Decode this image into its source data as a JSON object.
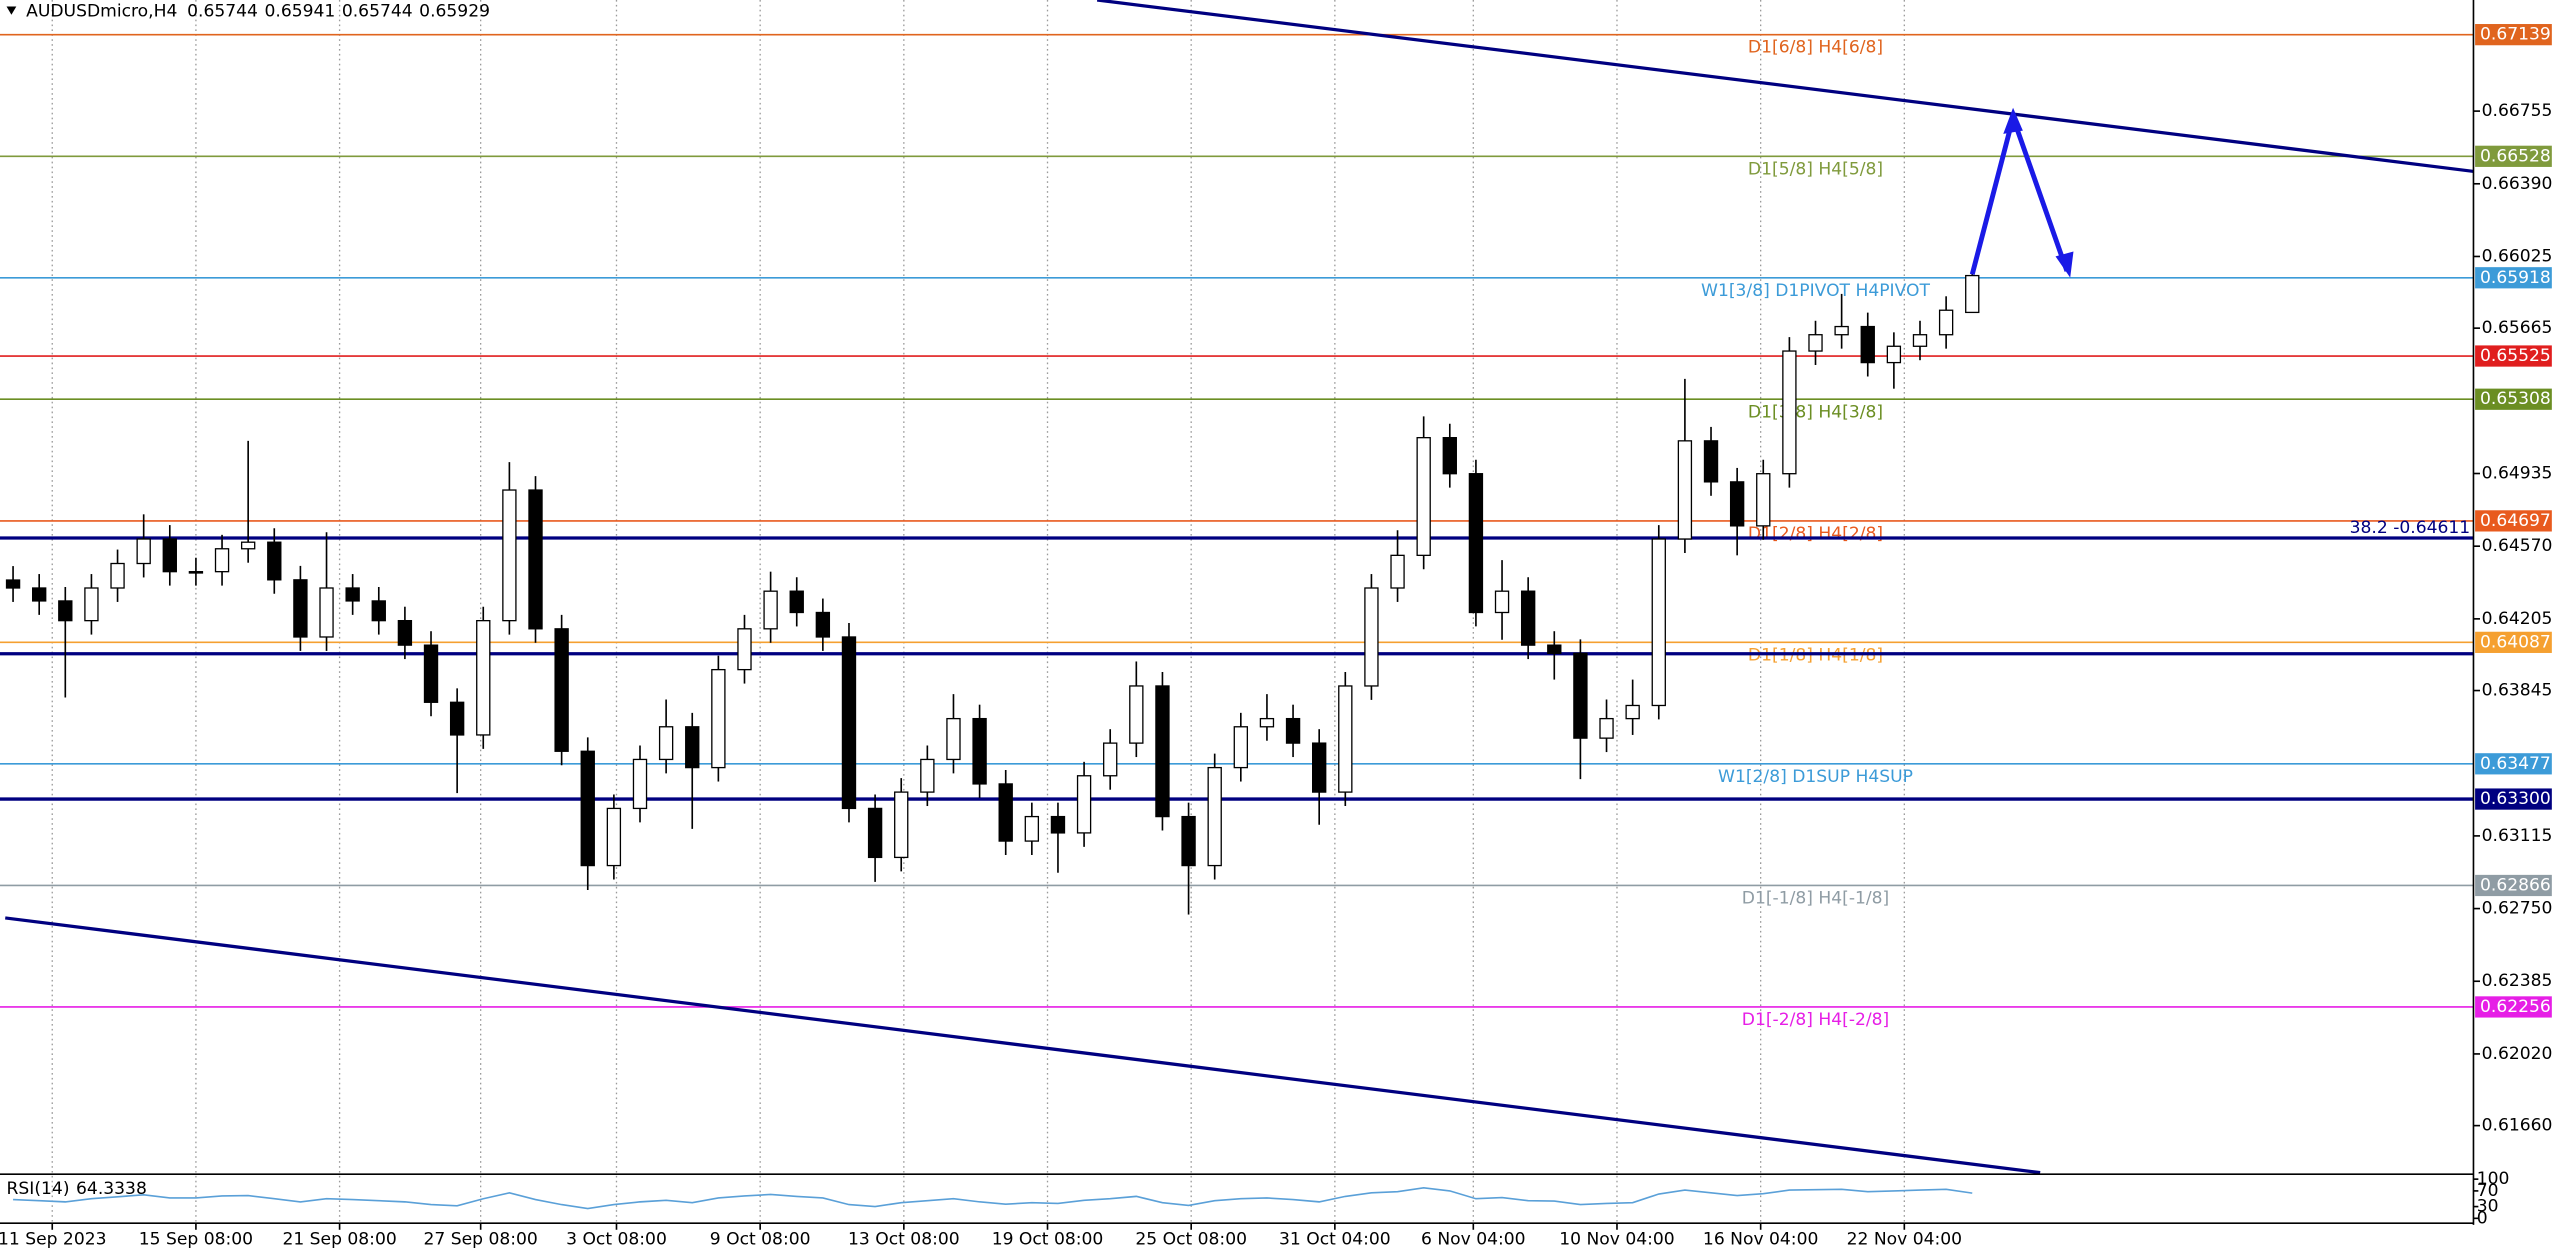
{
  "chart_data": {
    "type": "candlestick",
    "title": "AUDUSDmicro,H4",
    "last_bar": [
      0.65744,
      0.65941,
      0.65744,
      0.65929
    ],
    "up_color": "#ffffff",
    "down_color": "#000000",
    "open": [
      0.644,
      0.6436,
      0.64295,
      0.64196,
      0.6436,
      0.64483,
      0.64606,
      0.64442,
      0.64442,
      0.64557,
      0.6459,
      0.64401,
      0.64114,
      0.6436,
      0.64295,
      0.64196,
      0.64073,
      0.63786,
      0.63622,
      0.64196,
      0.64852,
      0.64155,
      0.6354,
      0.62966,
      0.63253,
      0.63499,
      0.63663,
      0.63458,
      0.6395,
      0.64155,
      0.64344,
      0.64237,
      0.64114,
      0.63253,
      0.63007,
      0.63335,
      0.63499,
      0.63704,
      0.63376,
      0.63089,
      0.63212,
      0.6313,
      0.63417,
      0.63581,
      0.63868,
      0.63212,
      0.62966,
      0.63458,
      0.63663,
      0.63704,
      0.63581,
      0.63335,
      0.63868,
      0.6436,
      0.64524,
      0.65115,
      0.64934,
      0.64237,
      0.64344,
      0.64073,
      0.64032,
      0.63606,
      0.63704,
      0.6377,
      0.64606,
      0.65099,
      0.64893,
      0.64672,
      0.64934,
      0.6555,
      0.65632,
      0.65673,
      0.65492,
      0.65574,
      0.65632,
      0.65744
    ],
    "high": [
      0.6447,
      0.6443,
      0.64365,
      0.6443,
      0.64553,
      0.6473,
      0.64676,
      0.64512,
      0.64627,
      0.65099,
      0.6466,
      0.64471,
      0.6464,
      0.6443,
      0.64365,
      0.64266,
      0.64143,
      0.63856,
      0.64266,
      0.64992,
      0.64922,
      0.64225,
      0.6361,
      0.63323,
      0.63569,
      0.638,
      0.63733,
      0.6402,
      0.64225,
      0.64442,
      0.64414,
      0.64307,
      0.64184,
      0.63323,
      0.63405,
      0.63569,
      0.63827,
      0.63774,
      0.63446,
      0.63282,
      0.63282,
      0.63487,
      0.63651,
      0.63991,
      0.63938,
      0.63282,
      0.63528,
      0.63733,
      0.63827,
      0.63774,
      0.63651,
      0.63938,
      0.6443,
      0.6465,
      0.65222,
      0.65185,
      0.65004,
      0.645,
      0.64414,
      0.64143,
      0.64102,
      0.638,
      0.639,
      0.64676,
      0.6541,
      0.65169,
      0.64963,
      0.65004,
      0.6562,
      0.65702,
      0.65837,
      0.65743,
      0.65644,
      0.65702,
      0.65825,
      0.65941
    ],
    "low": [
      0.6429,
      0.64225,
      0.6381,
      0.64126,
      0.6429,
      0.64413,
      0.64372,
      0.64372,
      0.64372,
      0.64487,
      0.64331,
      0.64044,
      0.64044,
      0.64225,
      0.64126,
      0.64003,
      0.63716,
      0.6333,
      0.63552,
      0.64126,
      0.64085,
      0.6347,
      0.62843,
      0.62896,
      0.63183,
      0.63429,
      0.6315,
      0.63388,
      0.6388,
      0.64085,
      0.64167,
      0.64044,
      0.63183,
      0.62884,
      0.62937,
      0.63265,
      0.63429,
      0.63306,
      0.63019,
      0.63019,
      0.6293,
      0.6306,
      0.63347,
      0.63511,
      0.63142,
      0.6272,
      0.62896,
      0.63388,
      0.63593,
      0.63511,
      0.63171,
      0.63265,
      0.63798,
      0.6429,
      0.64454,
      0.64864,
      0.64167,
      0.641,
      0.64003,
      0.639,
      0.634,
      0.63536,
      0.63622,
      0.637,
      0.64536,
      0.64823,
      0.64524,
      0.64602,
      0.64864,
      0.6548,
      0.65562,
      0.65422,
      0.65361,
      0.65504,
      0.65562,
      0.65744
    ],
    "close": [
      0.6436,
      0.64295,
      0.64196,
      0.6436,
      0.64483,
      0.64606,
      0.64442,
      0.64442,
      0.64557,
      0.6459,
      0.64401,
      0.64114,
      0.6436,
      0.64295,
      0.64196,
      0.64073,
      0.63786,
      0.63622,
      0.64196,
      0.64852,
      0.64155,
      0.6354,
      0.62966,
      0.63253,
      0.63499,
      0.63663,
      0.63458,
      0.6395,
      0.64155,
      0.64344,
      0.64237,
      0.64114,
      0.63253,
      0.63007,
      0.63335,
      0.63499,
      0.63704,
      0.63376,
      0.63089,
      0.63212,
      0.6313,
      0.63417,
      0.63581,
      0.63868,
      0.63212,
      0.62966,
      0.63458,
      0.63663,
      0.63704,
      0.63581,
      0.63335,
      0.63868,
      0.6436,
      0.64524,
      0.65115,
      0.64934,
      0.64237,
      0.64344,
      0.64073,
      0.64032,
      0.63606,
      0.63704,
      0.6377,
      0.64606,
      0.65099,
      0.64893,
      0.64672,
      0.64934,
      0.6555,
      0.65632,
      0.65673,
      0.65492,
      0.65574,
      0.65632,
      0.65755,
      0.65929
    ],
    "ylim": [
      0.61424,
      0.67313
    ],
    "yticks": [
      0.66755,
      {
        "value": 0.6639,
        "label": "0.66390"
      },
      0.66025,
      0.65665,
      0.64935,
      {
        "value": 0.6457,
        "label": "0.64570"
      },
      0.64205,
      0.63845,
      0.63115,
      {
        "value": 0.6275,
        "label": "0.62750"
      },
      0.62385,
      {
        "value": 0.6202,
        "label": "0.62020"
      },
      {
        "value": 0.6166,
        "label": "0.61660"
      }
    ],
    "xticks": [
      {
        "value": 1.5,
        "label": "11 Sep 2023"
      },
      {
        "value": 7,
        "label": "15 Sep 08:00"
      },
      {
        "value": 12.5,
        "label": "21 Sep 08:00"
      },
      {
        "value": 17.9,
        "label": "27 Sep 08:00"
      },
      {
        "value": 23.1,
        "label": "3 Oct 08:00"
      },
      {
        "value": 28.6,
        "label": "9 Oct 08:00"
      },
      {
        "value": 34.1,
        "label": "13 Oct 08:00"
      },
      {
        "value": 39.6,
        "label": "19 Oct 08:00"
      },
      {
        "value": 45.1,
        "label": "25 Oct 08:00"
      },
      {
        "value": 50.6,
        "label": "31 Oct 04:00"
      },
      {
        "value": 55.9,
        "label": "6 Nov 04:00"
      },
      {
        "value": 61.4,
        "label": "10 Nov 04:00"
      },
      {
        "value": 66.9,
        "label": "16 Nov 04:00"
      },
      {
        "value": 72.4,
        "label": "22 Nov 04:00"
      }
    ],
    "grid": true,
    "levels": [
      {
        "value": 0.67139,
        "label": "D1[6/8] H4[6/8]",
        "color": "#e0641e"
      },
      {
        "value": 0.66528,
        "label": "D1[5/8] H4[5/8]",
        "color": "#7f9a3c"
      },
      {
        "value": 0.65918,
        "label": "W1[3/8] D1PIVOT H4PIVOT",
        "color": "#3c9bd8"
      },
      {
        "value": 0.65525,
        "color": "#e01e1e"
      },
      {
        "value": 0.65308,
        "label": "D1[3/8] H4[3/8]",
        "color": "#6b8e23"
      },
      {
        "value": 0.64697,
        "label": "D1[2/8] H4[2/8]",
        "color": "#e85a1e"
      },
      {
        "value": 0.64087,
        "label": "D1[1/8] H4[1/8]",
        "color": "#f5a030"
      },
      {
        "value": 0.63477,
        "label": "W1[2/8] D1SUP H4SUP",
        "color": "#3c9bd8"
      },
      {
        "value": 0.62866,
        "label": "D1[-1/8] H4[-1/8]",
        "color": "#8f9ca4"
      },
      {
        "value": 0.62256,
        "label": "D1[-2/8] H4[-2/8]",
        "color": "#e61ee6"
      }
    ],
    "lines": [
      {
        "value": 0.64611,
        "label": "38.2 -0.64611",
        "color": "#000080"
      },
      {
        "value": 0.6403,
        "color": "#000080"
      },
      {
        "value": 0.633,
        "price_label": "0.63300",
        "color": "#000080"
      }
    ],
    "trendlines": [
      {
        "color": "#000080",
        "points": [
          [
            41.5,
            0.67313
          ],
          [
            94.2,
            0.66452
          ]
        ]
      },
      {
        "color": "#000080",
        "points": [
          [
            -0.3,
            0.62703
          ],
          [
            77.6,
            0.61424
          ]
        ]
      }
    ],
    "rsi": {
      "label": "RSI(14)",
      "current": 64.3338,
      "color": "#5aa0d8",
      "ylim": [
        0,
        100
      ],
      "yticks": [
        100,
        70,
        30,
        0
      ],
      "values": [
        48,
        45,
        42,
        50,
        55,
        60,
        52,
        52,
        57,
        58,
        50,
        42,
        50,
        48,
        45,
        42,
        35,
        32,
        50,
        65,
        48,
        35,
        25,
        35,
        42,
        46,
        40,
        52,
        57,
        61,
        56,
        52,
        35,
        30,
        40,
        45,
        50,
        42,
        36,
        40,
        38,
        46,
        50,
        56,
        40,
        33,
        45,
        50,
        52,
        48,
        42,
        56,
        65,
        68,
        78,
        70,
        50,
        53,
        45,
        44,
        35,
        38,
        40,
        62,
        72,
        65,
        58,
        63,
        72,
        73,
        74,
        68,
        70,
        72,
        74,
        64.3338
      ]
    }
  }
}
